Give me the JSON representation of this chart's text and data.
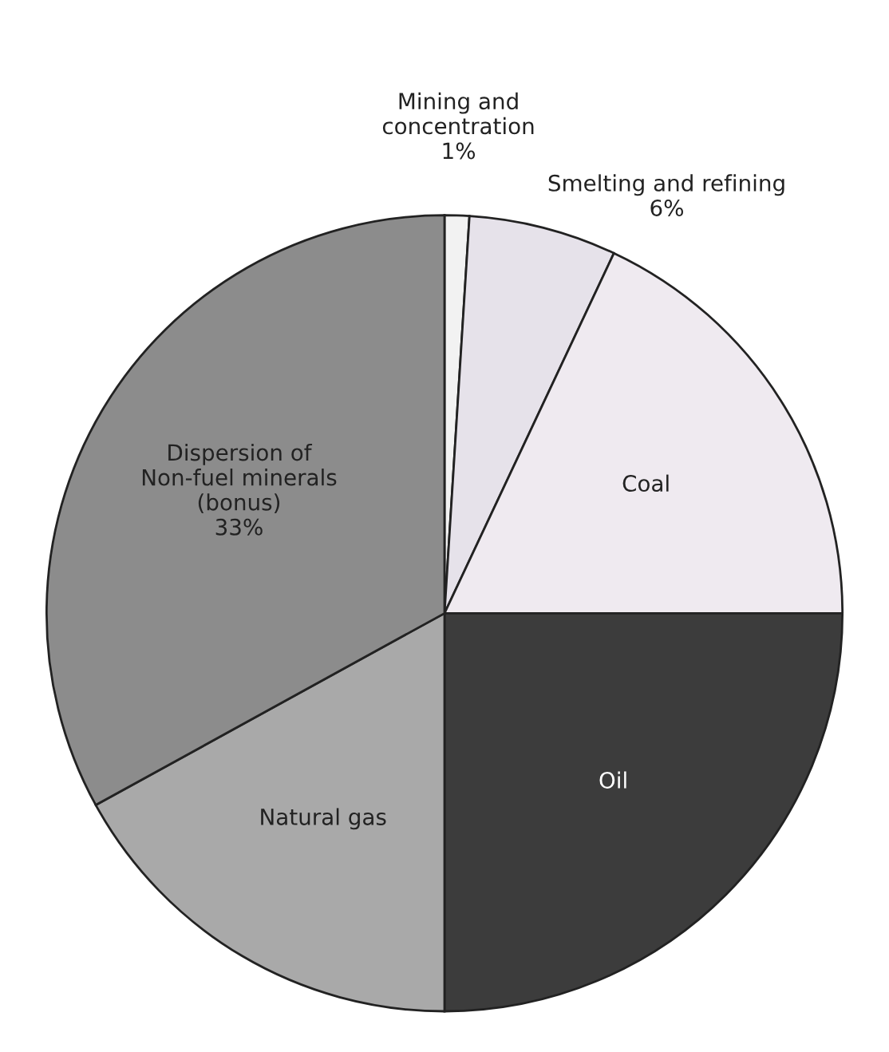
{
  "chart_data": {
    "type": "pie",
    "categories": [
      "Mining and\nconcentration",
      "Smelting and refining",
      "Coal",
      "Oil",
      "Natural gas",
      "Dispersion of\nNon-fuel minerals\n(bonus)"
    ],
    "values": [
      1,
      6,
      18,
      25,
      17,
      33
    ],
    "value_labels": [
      "1%",
      "6%",
      null,
      null,
      null,
      "33%"
    ],
    "colors": [
      "#f2f2f2",
      "#e6e2ea",
      "#efeaf0",
      "#3c3c3c",
      "#a9a9a9",
      "#8c8c8c"
    ]
  }
}
